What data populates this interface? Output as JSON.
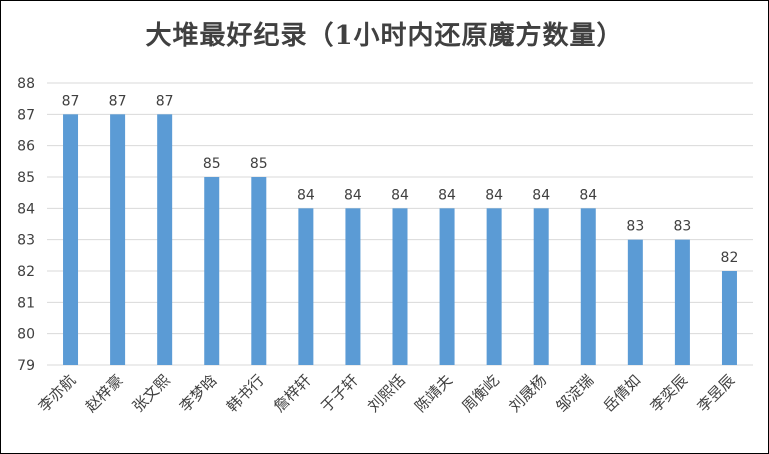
{
  "chart_data": {
    "type": "bar",
    "title": "大堆最好纪录（1小时内还原魔方数量）",
    "xlabel": "",
    "ylabel": "",
    "ylim": [
      79,
      88
    ],
    "yticks": [
      79,
      80,
      81,
      82,
      83,
      84,
      85,
      86,
      87,
      88
    ],
    "grid": true,
    "bar_color": "#5B9BD5",
    "grid_color": "#D9D9D9",
    "categories": [
      "李亦航",
      "赵梓豪",
      "张文熙",
      "李梦晗",
      "韩书行",
      "詹梓轩",
      "于子轩",
      "刘熙恬",
      "陈靖夫",
      "周衡屹",
      "刘晟杨",
      "邹淀瑞",
      "岳倩如",
      "李奕辰",
      "李昱辰"
    ],
    "values": [
      87,
      87,
      87,
      85,
      85,
      84,
      84,
      84,
      84,
      84,
      84,
      84,
      83,
      83,
      82
    ]
  }
}
